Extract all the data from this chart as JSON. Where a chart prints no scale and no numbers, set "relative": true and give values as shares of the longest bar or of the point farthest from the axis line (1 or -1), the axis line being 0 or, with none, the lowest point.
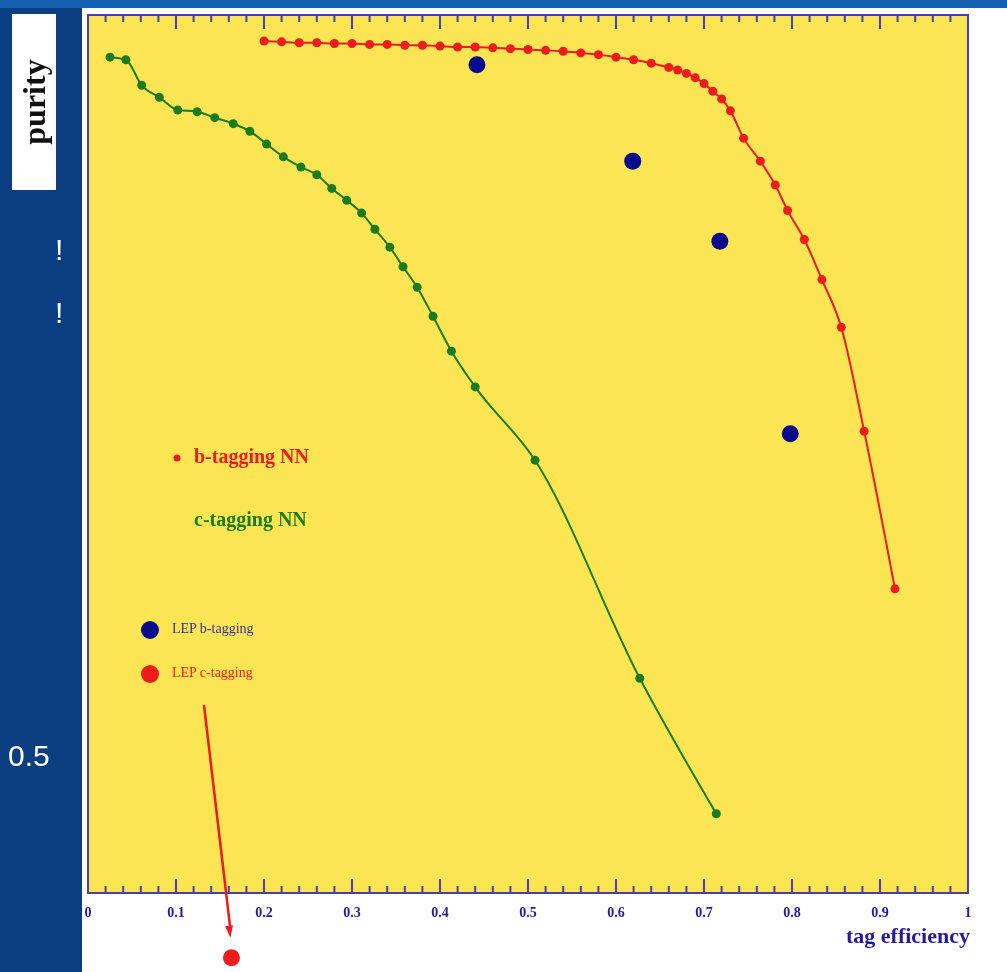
{
  "chart_data": {
    "type": "line",
    "xlabel": "tag efficiency",
    "ylabel": "purity",
    "relative": true,
    "marker": "circle",
    "legend": "left",
    "xlim": [
      0,
      1
    ],
    "xticks": [
      0,
      {
        "value": 0.02,
        "label": null
      },
      {
        "value": 0.04,
        "label": null
      },
      {
        "value": 0.06,
        "label": null
      },
      {
        "value": 0.08,
        "label": null
      },
      0.1,
      {
        "value": 0.12,
        "label": null
      },
      {
        "value": 0.14,
        "label": null
      },
      {
        "value": 0.16,
        "label": null
      },
      {
        "value": 0.18,
        "label": null
      },
      0.2,
      {
        "value": 0.22,
        "label": null
      },
      {
        "value": 0.24,
        "label": null
      },
      {
        "value": 0.26,
        "label": null
      },
      {
        "value": 0.28,
        "label": null
      },
      0.3,
      {
        "value": 0.32,
        "label": null
      },
      {
        "value": 0.34,
        "label": null
      },
      {
        "value": 0.36,
        "label": null
      },
      {
        "value": 0.38,
        "label": null
      },
      0.4,
      {
        "value": 0.42,
        "label": null
      },
      {
        "value": 0.44,
        "label": null
      },
      {
        "value": 0.46,
        "label": null
      },
      {
        "value": 0.48,
        "label": null
      },
      0.5,
      {
        "value": 0.52,
        "label": null
      },
      {
        "value": 0.54,
        "label": null
      },
      {
        "value": 0.56,
        "label": null
      },
      {
        "value": 0.58,
        "label": null
      },
      0.6,
      {
        "value": 0.62,
        "label": null
      },
      {
        "value": 0.64,
        "label": null
      },
      {
        "value": 0.66,
        "label": null
      },
      {
        "value": 0.68,
        "label": null
      },
      0.7,
      {
        "value": 0.72,
        "label": null
      },
      {
        "value": 0.74,
        "label": null
      },
      {
        "value": 0.76,
        "label": null
      },
      {
        "value": 0.78,
        "label": null
      },
      0.8,
      {
        "value": 0.82,
        "label": null
      },
      {
        "value": 0.84,
        "label": null
      },
      {
        "value": 0.86,
        "label": null
      },
      {
        "value": 0.88,
        "label": null
      },
      0.9,
      {
        "value": 0.92,
        "label": null
      },
      {
        "value": 0.94,
        "label": null
      },
      {
        "value": 0.96,
        "label": null
      },
      {
        "value": 0.98,
        "label": null
      },
      1
    ],
    "annotations": [
      "!",
      "!",
      "0.5"
    ],
    "series": [
      {
        "name": "b-tagging NN",
        "color": "#ee1c1c",
        "x": [
          0.2,
          0.22,
          0.24,
          0.26,
          0.28,
          0.3,
          0.32,
          0.34,
          0.36,
          0.38,
          0.4,
          0.42,
          0.44,
          0.46,
          0.48,
          0.5,
          0.52,
          0.54,
          0.56,
          0.58,
          0.6,
          0.62,
          0.64,
          0.66,
          0.67,
          0.68,
          0.69,
          0.7,
          0.71,
          0.72,
          0.73,
          0.745,
          0.764,
          0.781,
          0.795,
          0.814,
          0.834,
          0.856,
          0.882,
          0.917
        ],
        "values": [
          1.0,
          0.999,
          0.998,
          0.998,
          0.997,
          0.997,
          0.996,
          0.996,
          0.995,
          0.995,
          0.994,
          0.993,
          0.993,
          0.992,
          0.991,
          0.99,
          0.989,
          0.988,
          0.986,
          0.984,
          0.981,
          0.978,
          0.974,
          0.969,
          0.966,
          0.962,
          0.957,
          0.95,
          0.941,
          0.932,
          0.918,
          0.886,
          0.859,
          0.831,
          0.801,
          0.767,
          0.72,
          0.664,
          0.542,
          0.357
        ]
      },
      {
        "name": "c-tagging NN",
        "color": "#1e7a1e",
        "x": [
          0.025,
          0.043,
          0.061,
          0.081,
          0.102,
          0.124,
          0.144,
          0.165,
          0.184,
          0.203,
          0.222,
          0.242,
          0.26,
          0.277,
          0.294,
          0.311,
          0.326,
          0.343,
          0.358,
          0.374,
          0.392,
          0.413,
          0.44,
          0.508,
          0.627,
          0.714
        ],
        "values": [
          0.981,
          0.978,
          0.948,
          0.934,
          0.919,
          0.917,
          0.91,
          0.903,
          0.894,
          0.879,
          0.864,
          0.852,
          0.843,
          0.827,
          0.813,
          0.798,
          0.779,
          0.758,
          0.735,
          0.711,
          0.677,
          0.636,
          0.594,
          0.508,
          0.252,
          0.093
        ]
      },
      {
        "name": "LEP b-tagging",
        "type": "scatter",
        "color": "#0a0a8c",
        "x": [
          0.442,
          0.619,
          0.718,
          0.798
        ],
        "values": [
          0.972,
          0.859,
          0.765,
          0.539
        ]
      },
      {
        "name": "LEP c-tagging",
        "type": "scatter",
        "color": "#ee1c1c",
        "x": [
          0.163
        ],
        "values": [
          -0.076
        ]
      }
    ]
  }
}
